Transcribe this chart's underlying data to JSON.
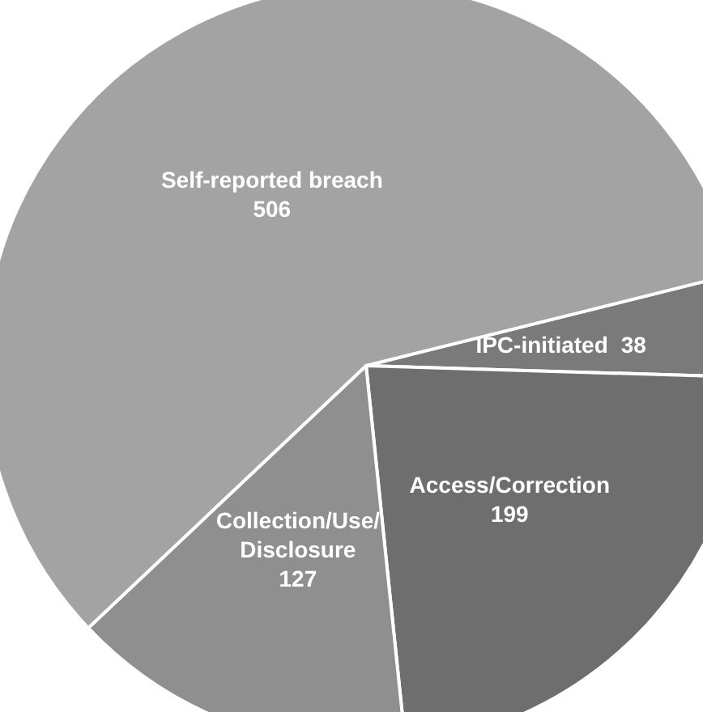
{
  "chart_data": {
    "type": "pie",
    "categories": [
      "IPC-initiated",
      "Access/Correction",
      "Collection/Use/Disclosure",
      "Self-reported breach"
    ],
    "values": [
      38,
      199,
      127,
      506
    ],
    "colors": [
      "#7a7a7a",
      "#6e6e6e",
      "#8f8f8f",
      "#a3a3a3"
    ],
    "data_labels": true,
    "legend": false
  }
}
